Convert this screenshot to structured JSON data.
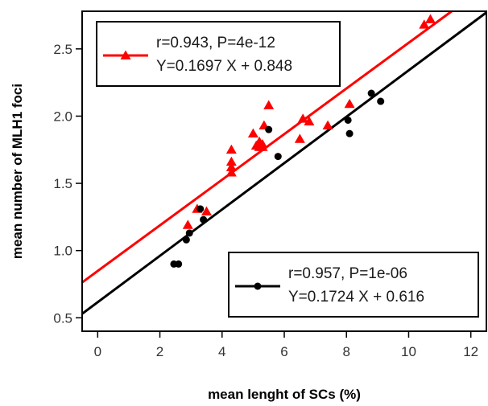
{
  "chart_data": {
    "type": "scatter",
    "xlabel": "mean lenght of SCs (%)",
    "ylabel": "mean number of MLH1 foci",
    "xlim": [
      -0.5,
      12.5
    ],
    "ylim": [
      0.4,
      2.78
    ],
    "xticks": [
      0,
      2,
      4,
      6,
      8,
      10,
      12
    ],
    "yticks": [
      0.5,
      1.0,
      1.5,
      2.0,
      2.5
    ],
    "ytick_labels": [
      "0.5",
      "1.0",
      "1.5",
      "2.0",
      "2.5"
    ],
    "series": [
      {
        "marker": "triangle",
        "color": "#ff0000",
        "fit": {
          "slope": 0.1697,
          "intercept": 0.848
        },
        "legend_lines": [
          "r=0.943, P=4e-12",
          "Y=0.1697 X + 0.848"
        ],
        "points": [
          [
            2.9,
            1.19
          ],
          [
            3.2,
            1.31
          ],
          [
            3.5,
            1.29
          ],
          [
            4.3,
            1.58
          ],
          [
            4.3,
            1.62
          ],
          [
            4.3,
            1.66
          ],
          [
            4.3,
            1.75
          ],
          [
            5.0,
            1.87
          ],
          [
            5.1,
            1.78
          ],
          [
            5.2,
            1.81
          ],
          [
            5.2,
            1.77
          ],
          [
            5.3,
            1.79
          ],
          [
            5.3,
            1.77
          ],
          [
            5.35,
            1.93
          ],
          [
            5.5,
            2.08
          ],
          [
            6.5,
            1.83
          ],
          [
            6.6,
            1.98
          ],
          [
            6.8,
            1.96
          ],
          [
            7.4,
            1.93
          ],
          [
            8.1,
            2.09
          ],
          [
            10.5,
            2.68
          ],
          [
            10.7,
            2.72
          ]
        ]
      },
      {
        "marker": "circle",
        "color": "#000000",
        "fit": {
          "slope": 0.1724,
          "intercept": 0.616
        },
        "legend_lines": [
          "r=0.957, P=1e-06",
          "Y=0.1724 X + 0.616"
        ],
        "points": [
          [
            2.45,
            0.9
          ],
          [
            2.6,
            0.9
          ],
          [
            2.85,
            1.08
          ],
          [
            2.95,
            1.13
          ],
          [
            3.3,
            1.31
          ],
          [
            3.4,
            1.23
          ],
          [
            5.5,
            1.9
          ],
          [
            5.8,
            1.7
          ],
          [
            8.05,
            1.97
          ],
          [
            8.1,
            1.87
          ],
          [
            8.8,
            2.17
          ],
          [
            9.1,
            2.11
          ]
        ]
      }
    ]
  }
}
